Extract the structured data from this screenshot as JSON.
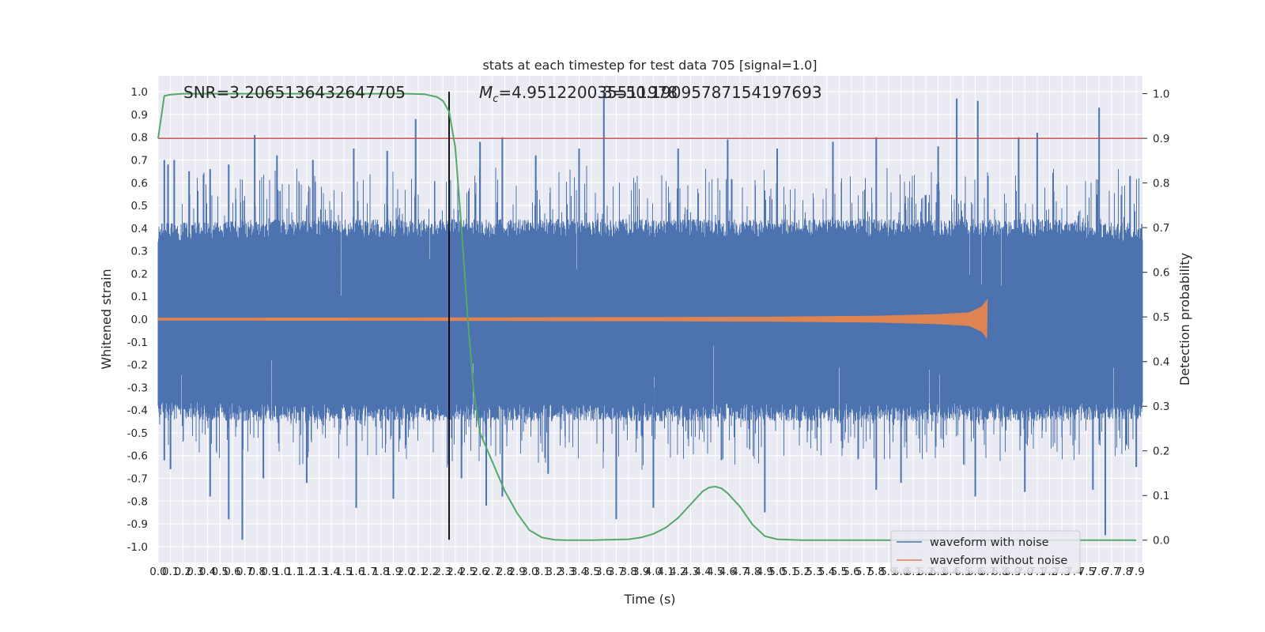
{
  "chart_data": {
    "type": "line",
    "title": "stats at each timestep for test data 705 [signal=1.0]",
    "xlabel": "Time (s)",
    "ylabel_left": "Whitened strain",
    "ylabel_right": "Detection probability",
    "xlim": [
      0,
      7.95
    ],
    "ylim_left": [
      -1.07,
      1.07
    ],
    "ylim_right": [
      -0.05,
      1.04
    ],
    "x_ticks": [
      "0.0",
      "0.1",
      "0.2",
      "0.3",
      "0.4",
      "0.5",
      "0.6",
      "0.7",
      "0.8",
      "0.9",
      "1.0",
      "1.1",
      "1.2",
      "1.3",
      "1.4",
      "1.5",
      "1.6",
      "1.7",
      "1.8",
      "1.9",
      "2.0",
      "2.1",
      "2.2",
      "2.3",
      "2.4",
      "2.5",
      "2.6",
      "2.7",
      "2.8",
      "2.9",
      "3.0",
      "3.1",
      "3.2",
      "3.3",
      "3.4",
      "3.5",
      "3.6",
      "3.7",
      "3.8",
      "3.9",
      "4.0",
      "4.1",
      "4.2",
      "4.3",
      "4.4",
      "4.5",
      "4.6",
      "4.7",
      "4.8",
      "4.9",
      "5.0",
      "5.1",
      "5.2",
      "5.3",
      "5.4",
      "5.5",
      "5.6",
      "5.7",
      "5.8",
      "5.9",
      "6.0",
      "6.1",
      "6.2",
      "6.3",
      "6.4",
      "6.5",
      "6.6",
      "6.7",
      "6.8",
      "6.9",
      "7.0",
      "7.1",
      "7.2",
      "7.3",
      "7.4",
      "7.5",
      "7.6",
      "7.7",
      "7.8",
      "7.9"
    ],
    "y_ticks_left": [
      "1.0",
      "0.9",
      "0.8",
      "0.7",
      "0.6",
      "0.5",
      "0.4",
      "0.3",
      "0.2",
      "0.1",
      "0.0",
      "-0.1",
      "-0.2",
      "-0.3",
      "-0.4",
      "-0.5",
      "-0.6",
      "-0.7",
      "-0.8",
      "-0.9",
      "-1.0"
    ],
    "y_ticks_right": [
      "1.0",
      "0.9",
      "0.8",
      "0.7",
      "0.6",
      "0.5",
      "0.4",
      "0.3",
      "0.2",
      "0.1",
      "0.0"
    ],
    "grid": true,
    "legend_position": "lower-right",
    "annotations": {
      "snr": "SNR=3.2065136432647705",
      "mc_symbol": "M",
      "mc_subscript": "c",
      "mc_value": "=4.951220035511978",
      "overlap": "3=50.19095787154197693"
    },
    "threshold": {
      "value": 0.9,
      "axis": "right",
      "color": "#c44e52"
    },
    "marker_time": 2.35,
    "series": [
      {
        "name": "waveform with noise",
        "color": "#4c72b0",
        "axis": "left",
        "envelope": {
          "x": [
            0.0,
            0.8,
            1.6,
            2.4,
            3.2,
            4.0,
            4.8,
            5.6,
            6.4,
            7.2,
            7.95
          ],
          "upper": [
            0.38,
            0.4,
            0.4,
            0.4,
            0.4,
            0.4,
            0.4,
            0.4,
            0.4,
            0.4,
            0.38
          ],
          "lower": [
            -0.4,
            -0.41,
            -0.41,
            -0.41,
            -0.41,
            -0.41,
            -0.41,
            -0.41,
            -0.41,
            -0.41,
            -0.4
          ]
        },
        "peaks_x": [
          0.05,
          0.08,
          0.13,
          0.25,
          0.42,
          0.57,
          0.78,
          0.96,
          1.25,
          1.58,
          1.85,
          2.08,
          2.6,
          2.78,
          3.05,
          3.4,
          3.6,
          4.2,
          4.6,
          5.0,
          5.45,
          5.8,
          6.3,
          6.45,
          6.62,
          6.95,
          7.1,
          7.6,
          7.85
        ],
        "peaks_y": [
          0.7,
          0.68,
          0.7,
          0.65,
          0.66,
          0.68,
          0.81,
          0.72,
          0.7,
          0.75,
          0.74,
          0.88,
          0.78,
          0.8,
          0.72,
          0.75,
          1.0,
          0.75,
          0.79,
          0.75,
          0.78,
          0.8,
          0.76,
          0.97,
          0.96,
          0.8,
          0.82,
          0.93,
          0.63
        ],
        "troughs_x": [
          0.05,
          0.1,
          0.42,
          0.57,
          0.68,
          0.85,
          1.2,
          1.6,
          1.9,
          2.45,
          2.65,
          2.78,
          3.15,
          3.7,
          4.0,
          4.55,
          4.9,
          5.8,
          6.0,
          6.6,
          7.0,
          7.55,
          7.65,
          7.9
        ],
        "troughs_y": [
          -0.62,
          -0.66,
          -0.78,
          -0.88,
          -0.97,
          -0.7,
          -0.72,
          -0.83,
          -0.79,
          -0.7,
          -0.82,
          -0.78,
          -0.68,
          -0.88,
          -0.83,
          -0.62,
          -0.85,
          -0.75,
          -0.72,
          -0.78,
          -0.76,
          -0.75,
          -0.95,
          -0.65
        ]
      },
      {
        "name": "waveform without noise",
        "color": "#dd8452",
        "axis": "left",
        "chirp": {
          "t_end": 6.7,
          "amplitude": {
            "x": [
              0.0,
              2.0,
              4.0,
              5.0,
              5.8,
              6.3,
              6.55,
              6.65,
              6.7
            ],
            "y": [
              0.006,
              0.007,
              0.009,
              0.011,
              0.015,
              0.022,
              0.03,
              0.055,
              0.09
            ]
          }
        }
      },
      {
        "name": "detection probability",
        "color": "#55a868",
        "axis": "right",
        "x": [
          0.0,
          0.05,
          0.1,
          0.2,
          0.3,
          0.5,
          1.0,
          1.5,
          2.0,
          2.15,
          2.25,
          2.3,
          2.35,
          2.4,
          2.45,
          2.5,
          2.55,
          2.6,
          2.7,
          2.8,
          2.9,
          3.0,
          3.1,
          3.2,
          3.3,
          3.5,
          3.8,
          3.9,
          4.0,
          4.1,
          4.2,
          4.3,
          4.4,
          4.45,
          4.5,
          4.55,
          4.6,
          4.7,
          4.8,
          4.9,
          5.0,
          5.2,
          6.0,
          7.0,
          7.9
        ],
        "y": [
          0.9,
          0.995,
          0.998,
          1.0,
          1.0,
          1.0,
          1.0,
          1.0,
          1.0,
          0.999,
          0.993,
          0.984,
          0.96,
          0.88,
          0.7,
          0.5,
          0.33,
          0.24,
          0.175,
          0.11,
          0.06,
          0.022,
          0.006,
          0.001,
          0.0,
          0.0,
          0.002,
          0.006,
          0.014,
          0.028,
          0.05,
          0.08,
          0.11,
          0.118,
          0.12,
          0.116,
          0.105,
          0.075,
          0.035,
          0.009,
          0.002,
          0.0,
          0.0,
          0.0,
          0.0
        ]
      }
    ]
  }
}
